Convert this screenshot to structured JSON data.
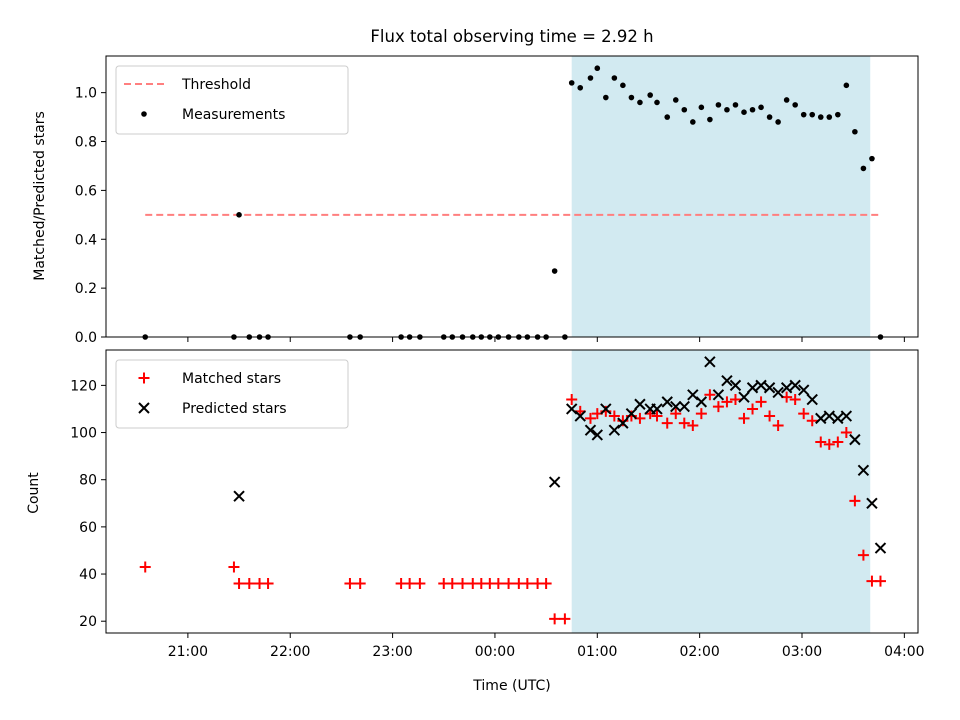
{
  "chart_data": [
    {
      "type": "scatter",
      "title": "Flux total observing time = 2.92 h",
      "xlabel": "",
      "ylabel": "Matched/Predicted stars",
      "xlim": [
        "20:12",
        "04:08"
      ],
      "ylim": [
        0,
        1.15
      ],
      "yticks": [
        "0.0",
        "0.2",
        "0.4",
        "0.6",
        "0.8",
        "1.0"
      ],
      "shaded_region": {
        "start": "00:45",
        "end": "03:40",
        "color": "#add8e6"
      },
      "threshold": {
        "name": "Threshold",
        "value": 0.5,
        "start": "20:35",
        "end": "03:45",
        "color": "#ff7f7f"
      },
      "legend": {
        "placement": "top-left",
        "entries": [
          "Threshold",
          "Measurements"
        ]
      },
      "series": [
        {
          "name": "Measurements",
          "color": "#000000",
          "points": [
            [
              "20:35",
              0.0
            ],
            [
              "21:27",
              0.0
            ],
            [
              "21:30",
              0.5
            ],
            [
              "21:36",
              0.0
            ],
            [
              "21:42",
              0.0
            ],
            [
              "21:47",
              0.0
            ],
            [
              "22:35",
              0.0
            ],
            [
              "22:41",
              0.0
            ],
            [
              "23:05",
              0.0
            ],
            [
              "23:10",
              0.0
            ],
            [
              "23:16",
              0.0
            ],
            [
              "23:30",
              0.0
            ],
            [
              "23:35",
              0.0
            ],
            [
              "23:41",
              0.0
            ],
            [
              "23:47",
              0.0
            ],
            [
              "23:52",
              0.0
            ],
            [
              "23:57",
              0.0
            ],
            [
              "00:02",
              0.0
            ],
            [
              "00:08",
              0.0
            ],
            [
              "00:14",
              0.0
            ],
            [
              "00:19",
              0.0
            ],
            [
              "00:25",
              0.0
            ],
            [
              "00:30",
              0.0
            ],
            [
              "00:35",
              0.27
            ],
            [
              "00:41",
              0.0
            ],
            [
              "00:45",
              1.04
            ],
            [
              "00:50",
              1.02
            ],
            [
              "00:56",
              1.06
            ],
            [
              "01:00",
              1.1
            ],
            [
              "01:05",
              0.98
            ],
            [
              "01:10",
              1.06
            ],
            [
              "01:15",
              1.03
            ],
            [
              "01:20",
              0.98
            ],
            [
              "01:25",
              0.96
            ],
            [
              "01:31",
              0.99
            ],
            [
              "01:35",
              0.96
            ],
            [
              "01:41",
              0.9
            ],
            [
              "01:46",
              0.97
            ],
            [
              "01:51",
              0.93
            ],
            [
              "01:56",
              0.88
            ],
            [
              "02:01",
              0.94
            ],
            [
              "02:06",
              0.89
            ],
            [
              "02:11",
              0.95
            ],
            [
              "02:16",
              0.93
            ],
            [
              "02:21",
              0.95
            ],
            [
              "02:26",
              0.92
            ],
            [
              "02:31",
              0.93
            ],
            [
              "02:36",
              0.94
            ],
            [
              "02:41",
              0.9
            ],
            [
              "02:46",
              0.88
            ],
            [
              "02:51",
              0.97
            ],
            [
              "02:56",
              0.95
            ],
            [
              "03:01",
              0.91
            ],
            [
              "03:06",
              0.91
            ],
            [
              "03:11",
              0.9
            ],
            [
              "03:16",
              0.9
            ],
            [
              "03:21",
              0.91
            ],
            [
              "03:26",
              1.03
            ],
            [
              "03:31",
              0.84
            ],
            [
              "03:36",
              0.69
            ],
            [
              "03:41",
              0.73
            ],
            [
              "03:46",
              0.0
            ]
          ]
        }
      ]
    },
    {
      "type": "scatter",
      "title": "",
      "xlabel": "Time (UTC)",
      "ylabel": "Count",
      "xlim": [
        "20:12",
        "04:08"
      ],
      "ylim": [
        15,
        135
      ],
      "yticks": [
        "20",
        "40",
        "60",
        "80",
        "100",
        "120"
      ],
      "xticks": [
        "21:00",
        "22:00",
        "23:00",
        "00:00",
        "01:00",
        "02:00",
        "03:00",
        "04:00"
      ],
      "shaded_region": {
        "start": "00:45",
        "end": "03:40",
        "color": "#add8e6"
      },
      "legend": {
        "placement": "top-left",
        "entries": [
          "Matched stars",
          "Predicted stars"
        ]
      },
      "series": [
        {
          "name": "Matched stars",
          "marker": "plus",
          "color": "#ff0000",
          "points": [
            [
              "20:35",
              43
            ],
            [
              "21:27",
              43
            ],
            [
              "21:30",
              36
            ],
            [
              "21:36",
              36
            ],
            [
              "21:42",
              36
            ],
            [
              "21:47",
              36
            ],
            [
              "22:35",
              36
            ],
            [
              "22:41",
              36
            ],
            [
              "23:05",
              36
            ],
            [
              "23:10",
              36
            ],
            [
              "23:16",
              36
            ],
            [
              "23:30",
              36
            ],
            [
              "23:35",
              36
            ],
            [
              "23:41",
              36
            ],
            [
              "23:47",
              36
            ],
            [
              "23:52",
              36
            ],
            [
              "23:57",
              36
            ],
            [
              "00:02",
              36
            ],
            [
              "00:08",
              36
            ],
            [
              "00:14",
              36
            ],
            [
              "00:19",
              36
            ],
            [
              "00:25",
              36
            ],
            [
              "00:30",
              36
            ],
            [
              "00:35",
              21
            ],
            [
              "00:41",
              21
            ],
            [
              "00:45",
              114
            ],
            [
              "00:50",
              109
            ],
            [
              "00:56",
              106
            ],
            [
              "01:00",
              108
            ],
            [
              "01:05",
              109
            ],
            [
              "01:10",
              107
            ],
            [
              "01:15",
              105
            ],
            [
              "01:20",
              107
            ],
            [
              "01:25",
              106
            ],
            [
              "01:31",
              108
            ],
            [
              "01:35",
              107
            ],
            [
              "01:41",
              104
            ],
            [
              "01:46",
              108
            ],
            [
              "01:51",
              104
            ],
            [
              "01:56",
              103
            ],
            [
              "02:01",
              108
            ],
            [
              "02:06",
              116
            ],
            [
              "02:11",
              111
            ],
            [
              "02:16",
              113
            ],
            [
              "02:21",
              114
            ],
            [
              "02:26",
              106
            ],
            [
              "02:31",
              110
            ],
            [
              "02:36",
              113
            ],
            [
              "02:41",
              107
            ],
            [
              "02:46",
              103
            ],
            [
              "02:51",
              115
            ],
            [
              "02:56",
              114
            ],
            [
              "03:01",
              108
            ],
            [
              "03:06",
              105
            ],
            [
              "03:11",
              96
            ],
            [
              "03:16",
              95
            ],
            [
              "03:21",
              96
            ],
            [
              "03:26",
              100
            ],
            [
              "03:31",
              71
            ],
            [
              "03:36",
              48
            ],
            [
              "03:41",
              37
            ],
            [
              "03:46",
              37
            ]
          ]
        },
        {
          "name": "Predicted stars",
          "marker": "x",
          "color": "#000000",
          "points": [
            [
              "21:30",
              73
            ],
            [
              "00:35",
              79
            ],
            [
              "00:45",
              110
            ],
            [
              "00:50",
              107
            ],
            [
              "00:56",
              101
            ],
            [
              "01:00",
              99
            ],
            [
              "01:05",
              110
            ],
            [
              "01:10",
              101
            ],
            [
              "01:15",
              104
            ],
            [
              "01:20",
              108
            ],
            [
              "01:25",
              112
            ],
            [
              "01:31",
              110
            ],
            [
              "01:35",
              110
            ],
            [
              "01:41",
              113
            ],
            [
              "01:46",
              111
            ],
            [
              "01:51",
              111
            ],
            [
              "01:56",
              116
            ],
            [
              "02:01",
              113
            ],
            [
              "02:06",
              130
            ],
            [
              "02:11",
              116
            ],
            [
              "02:16",
              122
            ],
            [
              "02:21",
              120
            ],
            [
              "02:26",
              115
            ],
            [
              "02:31",
              119
            ],
            [
              "02:36",
              120
            ],
            [
              "02:41",
              119
            ],
            [
              "02:46",
              117
            ],
            [
              "02:51",
              119
            ],
            [
              "02:56",
              120
            ],
            [
              "03:01",
              118
            ],
            [
              "03:06",
              114
            ],
            [
              "03:11",
              106
            ],
            [
              "03:16",
              107
            ],
            [
              "03:21",
              106
            ],
            [
              "03:26",
              107
            ],
            [
              "03:31",
              97
            ],
            [
              "03:36",
              84
            ],
            [
              "03:41",
              70
            ],
            [
              "03:46",
              51
            ]
          ]
        }
      ]
    }
  ]
}
